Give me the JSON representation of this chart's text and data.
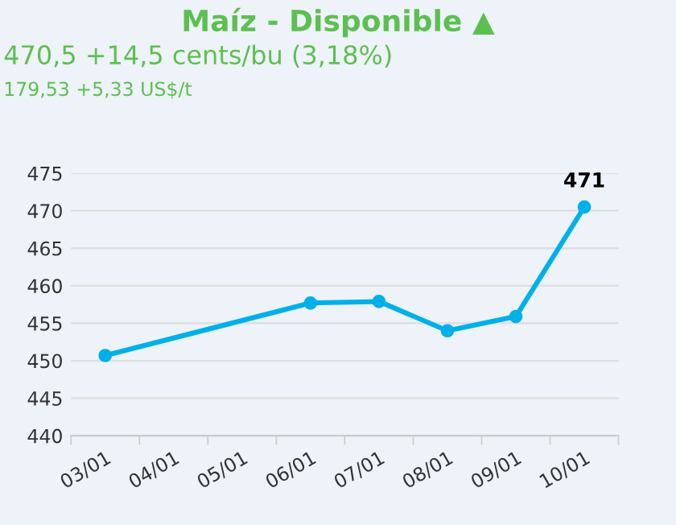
{
  "chart_data": {
    "type": "line",
    "title": "Maíz - Disponible ▲",
    "subtitle": "470,5 +14,5 cents/bu (3,18%)",
    "annotations": [
      "179,53 +5,33 US$/t"
    ],
    "categories": [
      "03/01",
      "04/01",
      "05/01",
      "06/01",
      "07/01",
      "08/01",
      "09/01",
      "10/01"
    ],
    "series": [
      {
        "color": "#00b0e8",
        "values": [
          450.7,
          null,
          null,
          457.7,
          457.9,
          454.0,
          455.9,
          470.5
        ],
        "value_labels": [
          null,
          null,
          null,
          null,
          null,
          null,
          null,
          "471"
        ]
      }
    ],
    "ylim": [
      440,
      475
    ],
    "yticks": [
      440,
      445,
      450,
      455,
      460,
      465,
      470,
      475
    ],
    "grid": "y",
    "marker": "circle",
    "line_style": "solid",
    "legend": false
  }
}
